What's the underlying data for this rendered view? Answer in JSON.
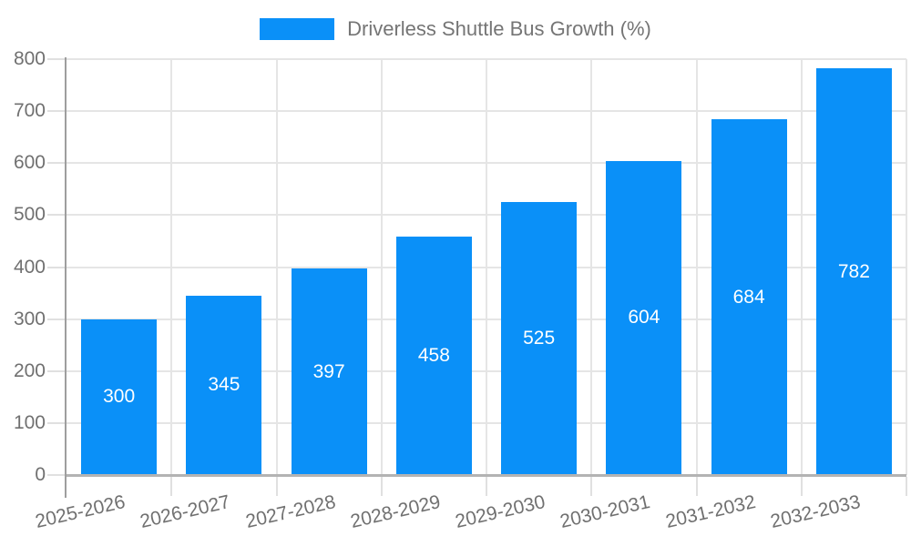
{
  "chart_data": {
    "type": "bar",
    "title": "",
    "series_name": "Driverless Shuttle Bus Growth (%)",
    "categories": [
      "2025-2026",
      "2026-2027",
      "2027-2028",
      "2028-2029",
      "2029-2030",
      "2030-2031",
      "2031-2032",
      "2032-2033"
    ],
    "values": [
      300,
      345,
      397,
      458,
      525,
      604,
      684,
      782
    ],
    "xlabel": "",
    "ylabel": "",
    "ylim": [
      0,
      800
    ],
    "ytick_step": 100,
    "yticks": [
      0,
      100,
      200,
      300,
      400,
      500,
      600,
      700,
      800
    ],
    "grid": true,
    "legend_position": "top-center",
    "bar_color": "#0a90f8",
    "value_label_color": "#ffffff",
    "axis_text_color": "#707070",
    "gridline_color": "#e5e5e5"
  }
}
